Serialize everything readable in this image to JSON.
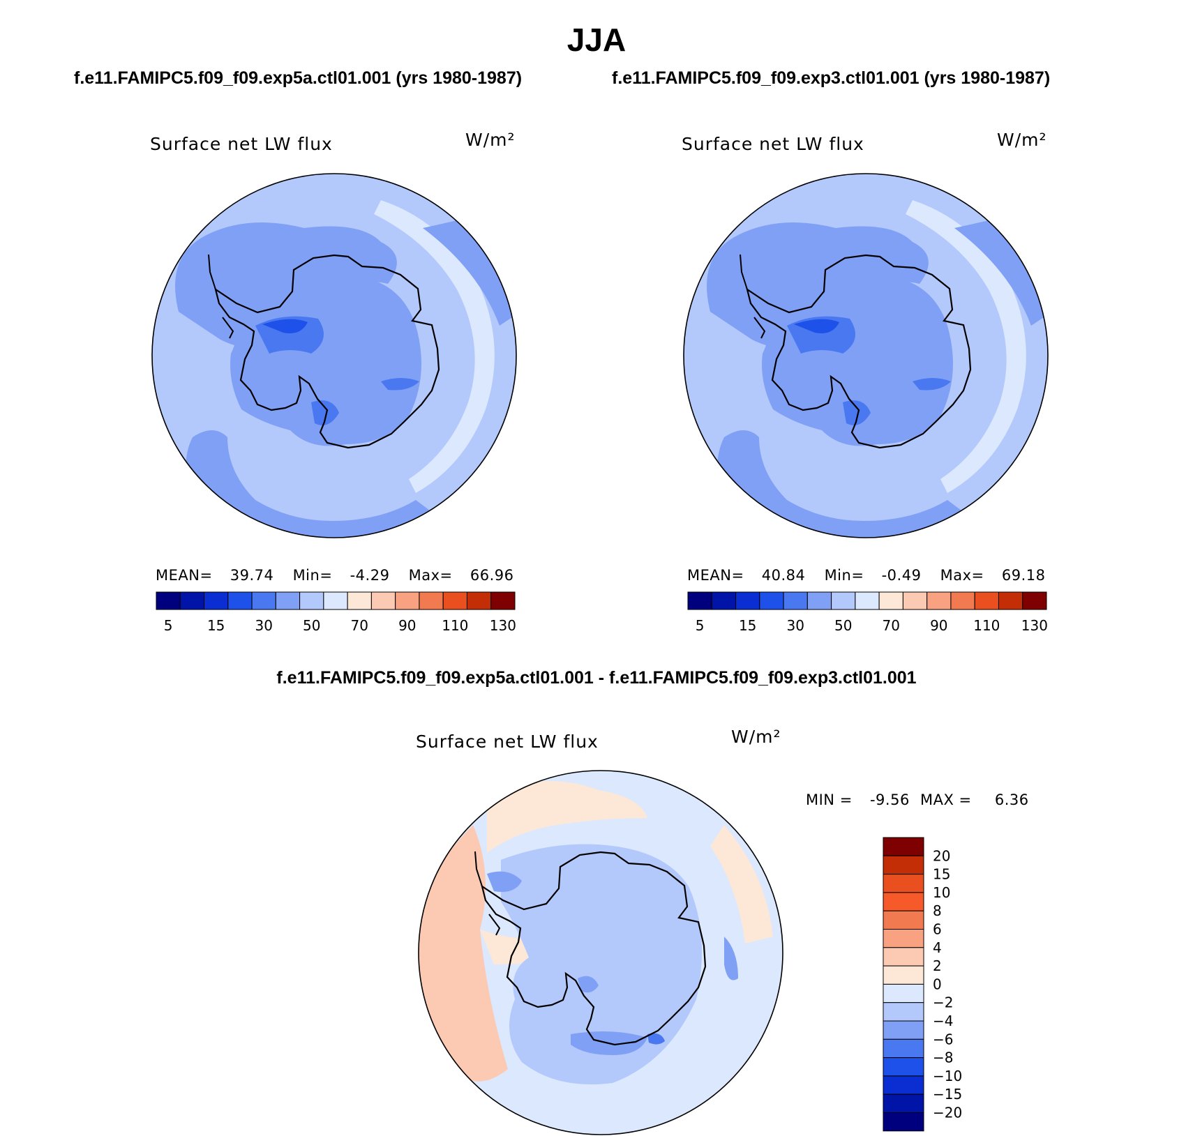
{
  "main_title": "JJA",
  "run_titles": [
    "f.e11.FAMIPC5.f09_f09.exp5a.ctl01.001 (yrs 1980-1987)",
    "f.e11.FAMIPC5.f09_f09.exp3.ctl01.001 (yrs 1980-1987)"
  ],
  "diff_title": "f.e11.FAMIPC5.f09_f09.exp5a.ctl01.001 - f.e11.FAMIPC5.f09_f09.exp3.ctl01.001",
  "colors": {
    "abs_scale": [
      "#00007f",
      "#0014a8",
      "#0a2ed2",
      "#1e50ea",
      "#4a78f0",
      "#7fa0f5",
      "#b3c8fb",
      "#dbe8fd",
      "#fde8d8",
      "#fcc9b2",
      "#f8a282",
      "#f27a50",
      "#e94f1f",
      "#c42e06",
      "#7f0000"
    ],
    "diff_scale": [
      "#00007f",
      "#0014a8",
      "#0a2ed2",
      "#1e50ea",
      "#4a78f0",
      "#7fa0f5",
      "#b3c8fb",
      "#dbe8fd",
      "#fde8d8",
      "#fcc9b2",
      "#f8a282",
      "#f27a50",
      "#e94f1f",
      "#c42e06",
      "#7f0000"
    ]
  },
  "chart_data": [
    {
      "type": "heatmap",
      "projection": "south-polar-stereographic",
      "title": "Surface net LW flux",
      "units": "W/m²",
      "stats": {
        "mean_label": "MEAN=",
        "mean": "39.74",
        "min_label": "Min=",
        "min": "-4.29",
        "max_label": "Max=",
        "max": "66.96"
      },
      "colorbar_ticks": [
        "5",
        "15",
        "30",
        "50",
        "70",
        "90",
        "110",
        "130"
      ]
    },
    {
      "type": "heatmap",
      "projection": "south-polar-stereographic",
      "title": "Surface net LW flux",
      "units": "W/m²",
      "stats": {
        "mean_label": "MEAN=",
        "mean": "40.84",
        "min_label": "Min=",
        "min": "-0.49",
        "max_label": "Max=",
        "max": "69.18"
      },
      "colorbar_ticks": [
        "5",
        "15",
        "30",
        "50",
        "70",
        "90",
        "110",
        "130"
      ]
    },
    {
      "type": "heatmap",
      "projection": "south-polar-stereographic",
      "title": "Surface net LW flux",
      "units": "W/m²",
      "stats": {
        "min_label": "MIN =",
        "min": "-9.56",
        "max_label": "MAX =",
        "max": "6.36"
      },
      "colorbar_ticks": [
        "20",
        "15",
        "10",
        "8",
        "6",
        "4",
        "2",
        "0",
        "−2",
        "−4",
        "−6",
        "−8",
        "−10",
        "−15",
        "−20"
      ]
    }
  ]
}
